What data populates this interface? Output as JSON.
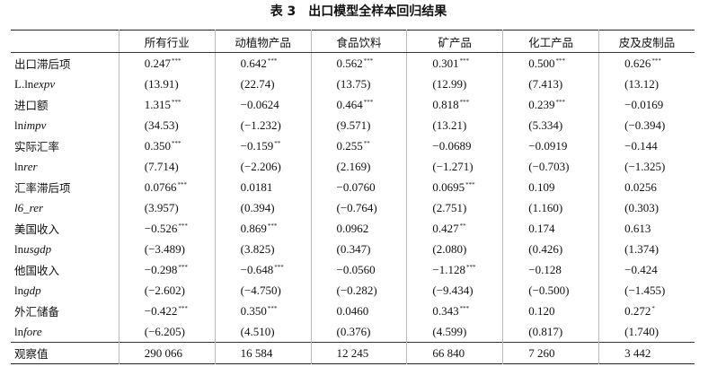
{
  "title": "表 3　出口模型全样本回归结果",
  "table": {
    "header": [
      "所有行业",
      "动植物产品",
      "食品饮料",
      "矿产品",
      "化工产品",
      "皮及皮制品"
    ],
    "rows": [
      {
        "label": "出口滞后项",
        "cells": [
          {
            "value": "0.247",
            "sig": "***"
          },
          {
            "value": "0.642",
            "sig": "***"
          },
          {
            "value": "0.562",
            "sig": "***"
          },
          {
            "value": "0.301",
            "sig": "***"
          },
          {
            "value": "0.500",
            "sig": "***"
          },
          {
            "value": "0.626",
            "sig": "***"
          }
        ]
      },
      {
        "label": "L.ln",
        "label_italic": "expv",
        "cells": [
          {
            "value": "(13.91)"
          },
          {
            "value": "(22.74)"
          },
          {
            "value": "(13.75)"
          },
          {
            "value": "(12.99)"
          },
          {
            "value": "(7.413)"
          },
          {
            "value": "(13.12)"
          }
        ]
      },
      {
        "label": "进口额",
        "cells": [
          {
            "value": "1.315",
            "sig": "***"
          },
          {
            "value": "−0.0624"
          },
          {
            "value": "0.464",
            "sig": "***"
          },
          {
            "value": "0.818",
            "sig": "***"
          },
          {
            "value": "0.239",
            "sig": "***"
          },
          {
            "value": "−0.0169"
          }
        ]
      },
      {
        "label": "ln",
        "label_italic": "impv",
        "cells": [
          {
            "value": "(34.53)"
          },
          {
            "value": "(−1.232)"
          },
          {
            "value": "(9.571)"
          },
          {
            "value": "(13.21)"
          },
          {
            "value": "(5.334)"
          },
          {
            "value": "(−0.394)"
          }
        ]
      },
      {
        "label": "实际汇率",
        "cells": [
          {
            "value": "0.350",
            "sig": "***"
          },
          {
            "value": "−0.159",
            "sig": "**"
          },
          {
            "value": "0.255",
            "sig": "**"
          },
          {
            "value": "−0.0689"
          },
          {
            "value": "−0.0919"
          },
          {
            "value": "−0.144"
          }
        ]
      },
      {
        "label": "ln",
        "label_italic": "rer",
        "cells": [
          {
            "value": "(7.714)"
          },
          {
            "value": "(−2.206)"
          },
          {
            "value": "(2.169)"
          },
          {
            "value": "(−1.271)"
          },
          {
            "value": "(−0.703)"
          },
          {
            "value": "(−1.325)"
          }
        ]
      },
      {
        "label": "汇率滞后项",
        "cells": [
          {
            "value": "0.0766",
            "sig": "***"
          },
          {
            "value": "0.0181"
          },
          {
            "value": "−0.0760"
          },
          {
            "value": "0.0695",
            "sig": "***"
          },
          {
            "value": "0.109"
          },
          {
            "value": "0.0256"
          }
        ]
      },
      {
        "label_italic": "l6_rer",
        "cells": [
          {
            "value": "(3.957)"
          },
          {
            "value": "(0.394)"
          },
          {
            "value": "(−0.764)"
          },
          {
            "value": "(2.751)"
          },
          {
            "value": "(1.160)"
          },
          {
            "value": "(0.303)"
          }
        ]
      },
      {
        "label": "美国收入",
        "cells": [
          {
            "value": "−0.526",
            "sig": "***"
          },
          {
            "value": "0.869",
            "sig": "***"
          },
          {
            "value": "0.0962"
          },
          {
            "value": "0.427",
            "sig": "**"
          },
          {
            "value": "0.174"
          },
          {
            "value": "0.613"
          }
        ]
      },
      {
        "label": "ln",
        "label_italic": "usgdp",
        "cells": [
          {
            "value": "(−3.489)"
          },
          {
            "value": "(3.825)"
          },
          {
            "value": "(0.347)"
          },
          {
            "value": "(2.080)"
          },
          {
            "value": "(0.426)"
          },
          {
            "value": "(1.374)"
          }
        ]
      },
      {
        "label": "他国收入",
        "cells": [
          {
            "value": "−0.298",
            "sig": "***"
          },
          {
            "value": "−0.648",
            "sig": "***"
          },
          {
            "value": "−0.0560"
          },
          {
            "value": "−1.128",
            "sig": "***"
          },
          {
            "value": "−0.128"
          },
          {
            "value": "−0.424"
          }
        ]
      },
      {
        "label": "ln",
        "label_italic": "gdp",
        "cells": [
          {
            "value": "(−2.602)"
          },
          {
            "value": "(−4.750)"
          },
          {
            "value": "(−0.282)"
          },
          {
            "value": "(−9.434)"
          },
          {
            "value": "(−0.500)"
          },
          {
            "value": "(−1.455)"
          }
        ]
      },
      {
        "label": "外汇储备",
        "cells": [
          {
            "value": "−0.422",
            "sig": "***"
          },
          {
            "value": "0.350",
            "sig": "***"
          },
          {
            "value": "0.0460"
          },
          {
            "value": "0.343",
            "sig": "***"
          },
          {
            "value": "0.120"
          },
          {
            "value": "0.272",
            "sig": "*"
          }
        ]
      },
      {
        "label": "ln",
        "label_italic": "fore",
        "cells": [
          {
            "value": "(−6.205)"
          },
          {
            "value": "(4.510)"
          },
          {
            "value": "(0.376)"
          },
          {
            "value": "(4.599)"
          },
          {
            "value": "(0.817)"
          },
          {
            "value": "(1.740)"
          }
        ]
      },
      {
        "label": "观察值",
        "cells": [
          {
            "value": "290 066"
          },
          {
            "value": "16 584"
          },
          {
            "value": "12 245"
          },
          {
            "value": "66 840"
          },
          {
            "value": "7 260"
          },
          {
            "value": "3 442"
          }
        ]
      }
    ]
  }
}
